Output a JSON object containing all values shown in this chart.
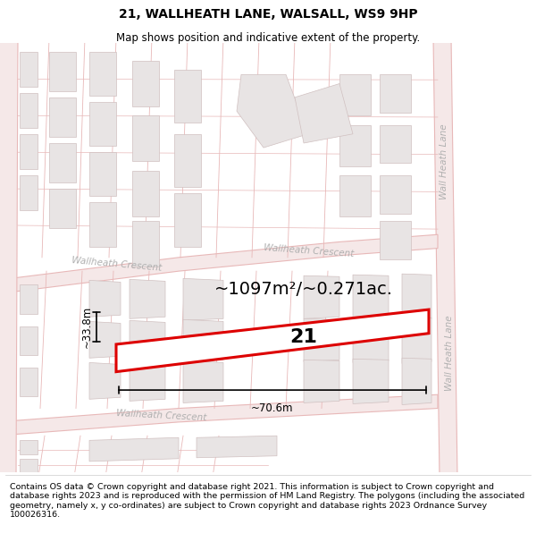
{
  "title": "21, WALLHEATH LANE, WALSALL, WS9 9HP",
  "subtitle": "Map shows position and indicative extent of the property.",
  "footer": "Contains OS data © Crown copyright and database right 2021. This information is subject to Crown copyright and database rights 2023 and is reproduced with the permission of HM Land Registry. The polygons (including the associated geometry, namely x, y co-ordinates) are subject to Crown copyright and database rights 2023 Ordnance Survey 100026316.",
  "area_text": "~1097m²/~0.271ac.",
  "width_text": "~70.6m",
  "height_text": "~33.8m",
  "property_number": "21",
  "bg_color": "#ffffff",
  "road_line_color": "#e8b8b8",
  "road_fill_color": "#f5e8e8",
  "building_fill": "#e8e4e4",
  "building_edge": "#d0c0c0",
  "highlight_color": "#dd0000",
  "street_color": "#b0b0b0",
  "title_fontsize": 10,
  "subtitle_fontsize": 8.5
}
